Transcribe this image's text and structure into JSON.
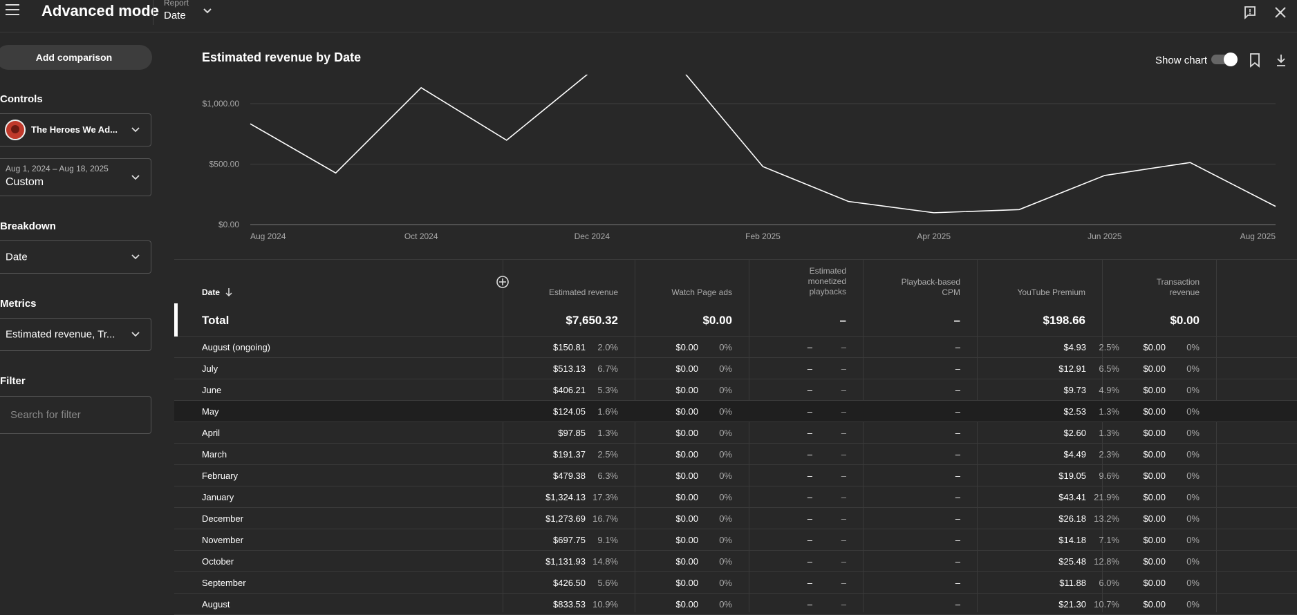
{
  "header": {
    "app_title": "Advanced mode",
    "report_label": "Report",
    "report_value": "Date"
  },
  "sidebar": {
    "add_comparison": "Add comparison",
    "controls_heading": "Controls",
    "channel_name": "The Heroes We Ad...",
    "date_range": "Aug 1, 2024 – Aug 18, 2025",
    "date_preset": "Custom",
    "breakdown_heading": "Breakdown",
    "breakdown_value": "Date",
    "metrics_heading": "Metrics",
    "metrics_value": "Estimated revenue, Tr...",
    "filter_heading": "Filter",
    "filter_placeholder": "Search for filter"
  },
  "chart": {
    "title": "Estimated revenue by Date",
    "show_chart_label": "Show chart"
  },
  "chart_data": {
    "type": "line",
    "title": "Estimated revenue by Date",
    "x": [
      "Aug 2024",
      "Sep 2024",
      "Oct 2024",
      "Nov 2024",
      "Dec 2024",
      "Jan 2025",
      "Feb 2025",
      "Mar 2025",
      "Apr 2025",
      "May 2025",
      "Jun 2025",
      "Jul 2025",
      "Aug 2025"
    ],
    "x_tick_labels": [
      "Aug 2024",
      "Oct 2024",
      "Dec 2024",
      "Feb 2025",
      "Apr 2025",
      "Jun 2025",
      "Aug 2025"
    ],
    "series": [
      {
        "values": [
          833.53,
          426.5,
          1131.93,
          697.75,
          1273.69,
          1324.13,
          479.38,
          191.37,
          97.85,
          124.05,
          406.21,
          513.13,
          150.81
        ]
      }
    ],
    "y_tick_labels": [
      "$0.00",
      "$500.00",
      "$1,000.00"
    ],
    "y_ticks": [
      0,
      500,
      1000
    ],
    "ylim": [
      0,
      1000
    ],
    "grid": true,
    "line_color": "#ffffff"
  },
  "table": {
    "columns": [
      {
        "label": "Date"
      },
      {
        "label": "Estimated revenue"
      },
      {
        "label": "Watch Page ads"
      },
      {
        "label_lines": [
          "Estimated",
          "monetized",
          "playbacks"
        ]
      },
      {
        "label_lines": [
          "Playback-based",
          "CPM"
        ]
      },
      {
        "label": "YouTube Premium"
      },
      {
        "label_lines": [
          "Transaction",
          "revenue"
        ]
      }
    ],
    "total": {
      "label": "Total",
      "est_revenue": "$7,650.32",
      "watch_page_ads": "$0.00",
      "monetized_playbacks": "–",
      "cpm": "–",
      "premium": "$198.66",
      "transaction": "$0.00"
    },
    "rows": [
      {
        "date": "August (ongoing)",
        "rev": "$150.81",
        "rev_pct": "2.0%",
        "ads": "$0.00",
        "ads_pct": "0%",
        "mp": "–",
        "mp_pct": "–",
        "cpm": "–",
        "prem": "$4.93",
        "prem_pct": "2.5%",
        "tx": "$0.00",
        "tx_pct": "0%"
      },
      {
        "date": "July",
        "rev": "$513.13",
        "rev_pct": "6.7%",
        "ads": "$0.00",
        "ads_pct": "0%",
        "mp": "–",
        "mp_pct": "–",
        "cpm": "–",
        "prem": "$12.91",
        "prem_pct": "6.5%",
        "tx": "$0.00",
        "tx_pct": "0%"
      },
      {
        "date": "June",
        "rev": "$406.21",
        "rev_pct": "5.3%",
        "ads": "$0.00",
        "ads_pct": "0%",
        "mp": "–",
        "mp_pct": "–",
        "cpm": "–",
        "prem": "$9.73",
        "prem_pct": "4.9%",
        "tx": "$0.00",
        "tx_pct": "0%"
      },
      {
        "date": "May",
        "rev": "$124.05",
        "rev_pct": "1.6%",
        "ads": "$0.00",
        "ads_pct": "0%",
        "mp": "–",
        "mp_pct": "–",
        "cpm": "–",
        "prem": "$2.53",
        "prem_pct": "1.3%",
        "tx": "$0.00",
        "tx_pct": "0%"
      },
      {
        "date": "April",
        "rev": "$97.85",
        "rev_pct": "1.3%",
        "ads": "$0.00",
        "ads_pct": "0%",
        "mp": "–",
        "mp_pct": "–",
        "cpm": "–",
        "prem": "$2.60",
        "prem_pct": "1.3%",
        "tx": "$0.00",
        "tx_pct": "0%"
      },
      {
        "date": "March",
        "rev": "$191.37",
        "rev_pct": "2.5%",
        "ads": "$0.00",
        "ads_pct": "0%",
        "mp": "–",
        "mp_pct": "–",
        "cpm": "–",
        "prem": "$4.49",
        "prem_pct": "2.3%",
        "tx": "$0.00",
        "tx_pct": "0%"
      },
      {
        "date": "February",
        "rev": "$479.38",
        "rev_pct": "6.3%",
        "ads": "$0.00",
        "ads_pct": "0%",
        "mp": "–",
        "mp_pct": "–",
        "cpm": "–",
        "prem": "$19.05",
        "prem_pct": "9.6%",
        "tx": "$0.00",
        "tx_pct": "0%"
      },
      {
        "date": "January",
        "rev": "$1,324.13",
        "rev_pct": "17.3%",
        "ads": "$0.00",
        "ads_pct": "0%",
        "mp": "–",
        "mp_pct": "–",
        "cpm": "–",
        "prem": "$43.41",
        "prem_pct": "21.9%",
        "tx": "$0.00",
        "tx_pct": "0%"
      },
      {
        "date": "December",
        "rev": "$1,273.69",
        "rev_pct": "16.7%",
        "ads": "$0.00",
        "ads_pct": "0%",
        "mp": "–",
        "mp_pct": "–",
        "cpm": "–",
        "prem": "$26.18",
        "prem_pct": "13.2%",
        "tx": "$0.00",
        "tx_pct": "0%"
      },
      {
        "date": "November",
        "rev": "$697.75",
        "rev_pct": "9.1%",
        "ads": "$0.00",
        "ads_pct": "0%",
        "mp": "–",
        "mp_pct": "–",
        "cpm": "–",
        "prem": "$14.18",
        "prem_pct": "7.1%",
        "tx": "$0.00",
        "tx_pct": "0%"
      },
      {
        "date": "October",
        "rev": "$1,131.93",
        "rev_pct": "14.8%",
        "ads": "$0.00",
        "ads_pct": "0%",
        "mp": "–",
        "mp_pct": "–",
        "cpm": "–",
        "prem": "$25.48",
        "prem_pct": "12.8%",
        "tx": "$0.00",
        "tx_pct": "0%"
      },
      {
        "date": "September",
        "rev": "$426.50",
        "rev_pct": "5.6%",
        "ads": "$0.00",
        "ads_pct": "0%",
        "mp": "–",
        "mp_pct": "–",
        "cpm": "–",
        "prem": "$11.88",
        "prem_pct": "6.0%",
        "tx": "$0.00",
        "tx_pct": "0%"
      },
      {
        "date": "August",
        "rev": "$833.53",
        "rev_pct": "10.9%",
        "ads": "$0.00",
        "ads_pct": "0%",
        "mp": "–",
        "mp_pct": "–",
        "cpm": "–",
        "prem": "$21.30",
        "prem_pct": "10.7%",
        "tx": "$0.00",
        "tx_pct": "0%"
      }
    ]
  }
}
